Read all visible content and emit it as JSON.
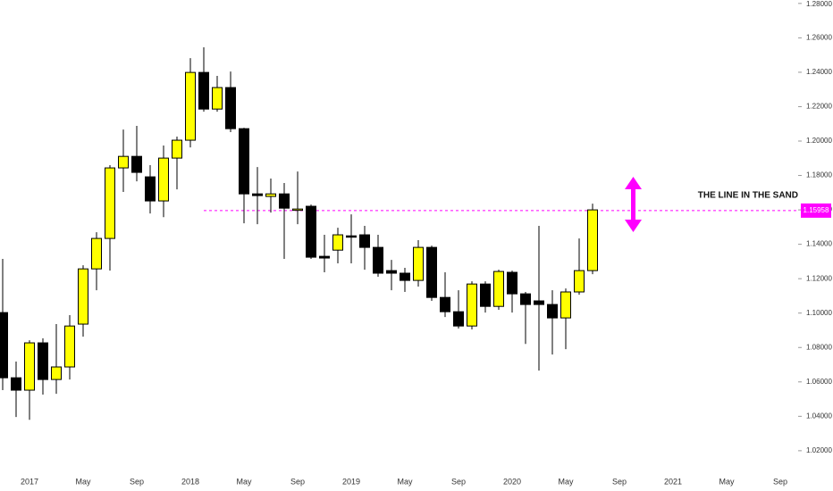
{
  "chart_data": {
    "type": "candlestick",
    "categories": [
      null,
      null,
      "2017",
      null,
      null,
      null,
      "May",
      null,
      null,
      null,
      "Sep",
      null,
      null,
      null,
      "2018",
      null,
      null,
      null,
      "May",
      null,
      null,
      null,
      "Sep",
      null,
      null,
      null,
      "2019",
      null,
      null,
      null,
      "May",
      null,
      null,
      null,
      "Sep",
      null,
      null,
      null,
      "2020",
      null,
      null,
      null,
      "May",
      null,
      null,
      null,
      "Sep",
      null,
      null,
      null,
      "2021",
      null,
      null,
      null,
      "May",
      null,
      null,
      null,
      "Sep"
    ],
    "open": [
      1.1003,
      1.0624,
      1.0552,
      1.0827,
      1.0614,
      1.0687,
      1.0936,
      1.1257,
      1.1434,
      1.1844,
      1.1911,
      1.1792,
      1.1652,
      1.1901,
      1.2005,
      1.2399,
      1.2186,
      1.2311,
      1.2072,
      1.1693,
      1.1678,
      1.1693,
      1.16,
      1.1621,
      1.133,
      1.1366,
      1.1449,
      1.1455,
      1.1382,
      1.1247,
      1.1232,
      1.119,
      1.1382,
      1.1091,
      1.1008,
      1.0925,
      1.1169,
      1.1039,
      1.1237,
      1.1112,
      1.1071,
      1.105,
      1.0972,
      1.1123,
      1.1247,
      null,
      null,
      null,
      null,
      null,
      null,
      null,
      null,
      null,
      null,
      null,
      null,
      null,
      null
    ],
    "high": [
      1.1315,
      1.0718,
      1.0842,
      1.0853,
      1.0936,
      1.0988,
      1.1278,
      1.147,
      1.186,
      1.2067,
      1.2088,
      1.186,
      1.1974,
      1.2026,
      1.2482,
      1.2545,
      1.2379,
      1.2404,
      1.2077,
      1.1849,
      1.1782,
      1.1756,
      1.1823,
      1.1631,
      1.1455,
      1.1496,
      1.1574,
      1.1507,
      1.1455,
      1.1309,
      1.1263,
      1.1424,
      1.1392,
      1.1237,
      1.1133,
      1.1185,
      1.1185,
      1.1252,
      1.1247,
      1.1123,
      1.1507,
      1.1133,
      1.1143,
      1.1434,
      1.1636,
      null,
      null,
      null,
      null,
      null,
      null,
      null,
      null,
      null,
      null,
      null,
      null,
      null,
      null
    ],
    "low": [
      1.0552,
      1.0396,
      1.038,
      1.0526,
      1.0531,
      1.0614,
      1.0863,
      1.1133,
      1.1247,
      1.1704,
      1.1766,
      1.1579,
      1.1558,
      1.1719,
      1.1963,
      1.2171,
      1.2171,
      1.2052,
      1.1522,
      1.1517,
      1.1584,
      1.1315,
      1.1517,
      1.1315,
      1.1237,
      1.1289,
      1.1289,
      1.1252,
      1.1211,
      1.1133,
      1.1123,
      1.1154,
      1.1071,
      1.0977,
      1.091,
      1.0905,
      1.1003,
      1.1019,
      1.1003,
      1.0821,
      1.0666,
      1.0759,
      1.079,
      1.1107,
      1.1226,
      null,
      null,
      null,
      null,
      null,
      null,
      null,
      null,
      null,
      null,
      null,
      null,
      null,
      null
    ],
    "close": [
      1.0624,
      1.0552,
      1.0827,
      1.0614,
      1.0687,
      1.0925,
      1.1257,
      1.1434,
      1.1844,
      1.1911,
      1.1818,
      1.1652,
      1.1901,
      1.2005,
      1.2399,
      1.2186,
      1.2311,
      1.2072,
      1.1693,
      1.1683,
      1.1693,
      1.161,
      1.1605,
      1.1325,
      1.132,
      1.1455,
      1.1444,
      1.1382,
      1.1232,
      1.1232,
      1.119,
      1.1382,
      1.1091,
      1.1008,
      1.0925,
      1.1169,
      1.1039,
      1.1242,
      1.1112,
      1.105,
      1.105,
      1.0972,
      1.1123,
      1.1247,
      1.16,
      null,
      null,
      null,
      null,
      null,
      null,
      null,
      null,
      null,
      null,
      null,
      null,
      null,
      null
    ],
    "up_color": "#ffff00",
    "down_color": "#000000",
    "ylim": [
      1.008,
      1.282
    ],
    "yticks": [
      {
        "value": 1.02,
        "label": "1.02000"
      },
      {
        "value": 1.04,
        "label": "1.04000"
      },
      {
        "value": 1.06,
        "label": "1.06000"
      },
      {
        "value": 1.08,
        "label": "1.08000"
      },
      {
        "value": 1.1,
        "label": "1.10000"
      },
      {
        "value": 1.12,
        "label": "1.12000"
      },
      {
        "value": 1.14,
        "label": "1.14000"
      },
      {
        "value": 1.16,
        "label": "1.16000"
      },
      {
        "value": 1.18,
        "label": "1.18000"
      },
      {
        "value": 1.2,
        "label": "1.20000"
      },
      {
        "value": 1.22,
        "label": "1.22000"
      },
      {
        "value": 1.24,
        "label": "1.24000"
      },
      {
        "value": 1.26,
        "label": "1.26000"
      },
      {
        "value": 1.28,
        "label": "1.28000"
      }
    ],
    "hline": 1.15958,
    "hline_color": "#ff00ff",
    "annotation": "THE LINE IN THE SAND"
  }
}
